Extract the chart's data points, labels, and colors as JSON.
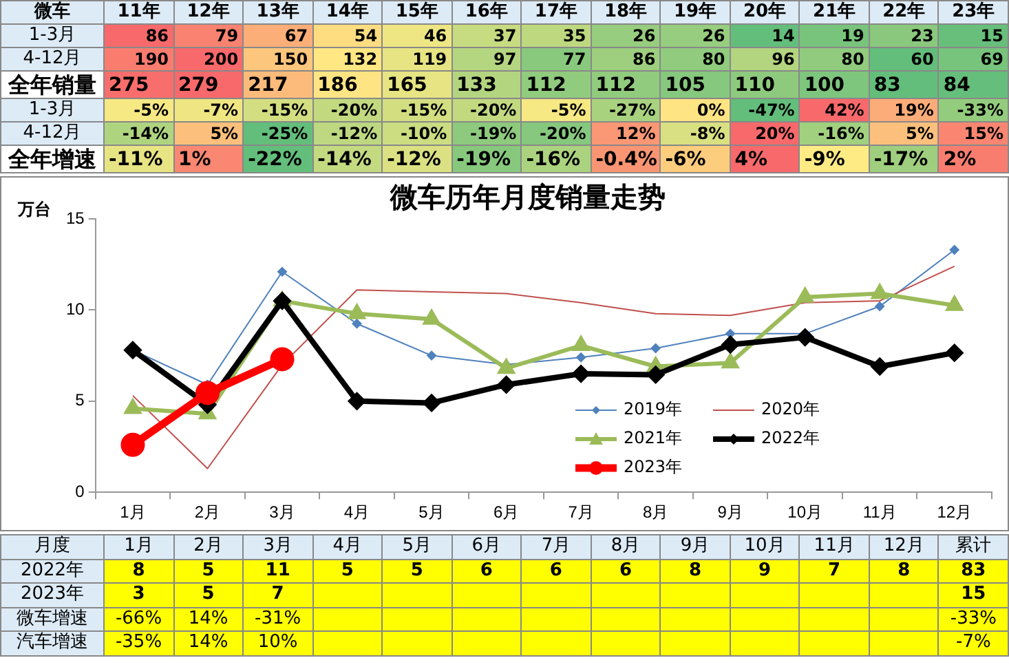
{
  "chart_data": [
    {
      "type": "heatmap",
      "title": "微车",
      "categories": [
        "11年",
        "12年",
        "13年",
        "14年",
        "15年",
        "16年",
        "17年",
        "18年",
        "19年",
        "20年",
        "21年",
        "22年",
        "23年"
      ],
      "y_categories": [
        "1-3月",
        "4-12月",
        "全年销量",
        "1-3月",
        "4-12月",
        "全年增速"
      ],
      "cells": [
        [
          86,
          79,
          67,
          54,
          46,
          37,
          35,
          26,
          26,
          14,
          19,
          23,
          15
        ],
        [
          190,
          200,
          150,
          132,
          119,
          97,
          77,
          86,
          80,
          96,
          80,
          60,
          69
        ],
        [
          275,
          279,
          217,
          186,
          165,
          133,
          112,
          112,
          105,
          110,
          100,
          83,
          84
        ],
        [
          -5,
          -7,
          -15,
          -20,
          -15,
          -20,
          -5,
          -27,
          0,
          -47,
          42,
          19,
          -33
        ],
        [
          -14,
          5,
          -25,
          -12,
          -10,
          -19,
          -20,
          12,
          -8,
          20,
          -16,
          5,
          15
        ],
        [
          -11,
          1,
          -22,
          -14,
          -12,
          -19,
          -16,
          -0.4,
          -6,
          4,
          -9,
          -17,
          2
        ]
      ],
      "cell_labels": [
        [
          "86",
          "79",
          "67",
          "54",
          "46",
          "37",
          "35",
          "26",
          "26",
          "14",
          "19",
          "23",
          "15"
        ],
        [
          "190",
          "200",
          "150",
          "132",
          "119",
          "97",
          "77",
          "86",
          "80",
          "96",
          "80",
          "60",
          "69"
        ],
        [
          "275",
          "279",
          "217",
          "186",
          "165",
          "133",
          "112",
          "112",
          "105",
          "110",
          "100",
          "83",
          "84"
        ],
        [
          "-5%",
          "-7%",
          "-15%",
          "-20%",
          "-15%",
          "-20%",
          "-5%",
          "-27%",
          "0%",
          "-47%",
          "42%",
          "19%",
          "-33%"
        ],
        [
          "-14%",
          "5%",
          "-25%",
          "-12%",
          "-10%",
          "-19%",
          "-20%",
          "12%",
          "-8%",
          "20%",
          "-16%",
          "5%",
          "15%"
        ],
        [
          "-11%",
          "1%",
          "-22%",
          "-14%",
          "-12%",
          "-19%",
          "-16%",
          "-0.4%",
          "-6%",
          "4%",
          "-9%",
          "-17%",
          "2%"
        ]
      ]
    },
    {
      "type": "line",
      "title": "微车历年月度销量走势",
      "ylabel": "万台",
      "categories": [
        "1月",
        "2月",
        "3月",
        "4月",
        "5月",
        "6月",
        "7月",
        "8月",
        "9月",
        "10月",
        "11月",
        "12月"
      ],
      "ylim": [
        0,
        15
      ],
      "yticks": [
        0,
        5,
        10,
        15
      ],
      "grid": false,
      "legend": "bottom",
      "series": [
        {
          "name": "2019年",
          "color": "#4f81bd",
          "marker": "diamond",
          "values": [
            7.8,
            5.9,
            12.1,
            9.25,
            7.5,
            7.0,
            7.4,
            7.9,
            8.7,
            8.7,
            10.2,
            13.3
          ]
        },
        {
          "name": "2020年",
          "color": "#c0504d",
          "marker": "none",
          "values": [
            5.3,
            1.3,
            7.0,
            11.1,
            11.0,
            10.9,
            10.4,
            9.8,
            9.7,
            10.4,
            10.5,
            12.4
          ]
        },
        {
          "name": "2021年",
          "color": "#9bbb59",
          "marker": "triangle",
          "values": [
            4.6,
            4.3,
            10.5,
            9.8,
            9.5,
            6.8,
            8.05,
            6.9,
            7.1,
            10.7,
            10.9,
            10.25
          ]
        },
        {
          "name": "2022年",
          "color": "#000000",
          "marker": "diamond",
          "values": [
            7.8,
            4.8,
            10.5,
            5.0,
            4.9,
            5.9,
            6.5,
            6.45,
            8.1,
            8.5,
            6.9,
            7.65
          ]
        },
        {
          "name": "2023年",
          "color": "#ff0000",
          "marker": "circle",
          "values": [
            2.6,
            5.45,
            7.3,
            null,
            null,
            null,
            null,
            null,
            null,
            null,
            null,
            null
          ]
        }
      ]
    },
    {
      "type": "heatmap",
      "title": "月度",
      "color": "#ffff00",
      "categories": [
        "1月",
        "2月",
        "3月",
        "4月",
        "5月",
        "6月",
        "7月",
        "8月",
        "9月",
        "10月",
        "11月",
        "12月",
        "累计"
      ],
      "y_categories": [
        "2022年",
        "2023年",
        "微车增速",
        "汽车增速"
      ],
      "cells": [
        [
          8,
          5,
          11,
          5,
          5,
          6,
          6,
          6,
          8,
          9,
          7,
          8,
          83
        ],
        [
          3,
          5,
          7,
          null,
          null,
          null,
          null,
          null,
          null,
          null,
          null,
          null,
          15
        ],
        [
          -66,
          14,
          -31,
          null,
          null,
          null,
          null,
          null,
          null,
          null,
          null,
          null,
          -33
        ],
        [
          -35,
          14,
          10,
          null,
          null,
          null,
          null,
          null,
          null,
          null,
          null,
          null,
          -7
        ]
      ],
      "cell_labels": [
        [
          "8",
          "5",
          "11",
          "5",
          "5",
          "6",
          "6",
          "6",
          "8",
          "9",
          "7",
          "8",
          "83"
        ],
        [
          "3",
          "5",
          "7",
          null,
          null,
          null,
          null,
          null,
          null,
          null,
          null,
          null,
          "15"
        ],
        [
          "-66%",
          "14%",
          "-31%",
          null,
          null,
          null,
          null,
          null,
          null,
          null,
          null,
          null,
          "-33%"
        ],
        [
          "-35%",
          "14%",
          "10%",
          null,
          null,
          null,
          null,
          null,
          null,
          null,
          null,
          null,
          "-7%"
        ]
      ]
    }
  ]
}
